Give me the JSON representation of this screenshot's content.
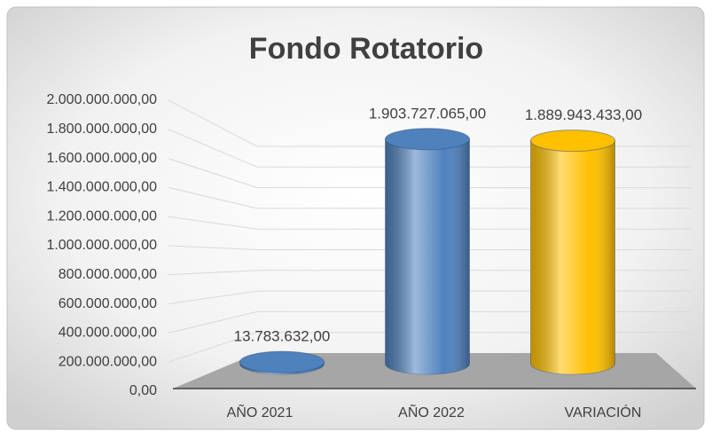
{
  "chart_data": {
    "type": "cylinder",
    "title": "Fondo Rotatorio",
    "categories": [
      "AÑO 2021",
      "AÑO 2022",
      "VARIACIÓN"
    ],
    "values": [
      13783632,
      1903727065,
      1889943433
    ],
    "value_labels": [
      "13.783.632,00",
      "1.903.727.065,00",
      "1.889.943.433,00"
    ],
    "colors": [
      "#4f81bd",
      "#4f81bd",
      "#ffc000"
    ],
    "ylim": [
      0,
      2000000000
    ],
    "yticks": [
      {
        "value": 0,
        "label": "0,00"
      },
      {
        "value": 200000000,
        "label": "200.000.000,00"
      },
      {
        "value": 400000000,
        "label": "400.000.000,00"
      },
      {
        "value": 600000000,
        "label": "600.000.000,00"
      },
      {
        "value": 800000000,
        "label": "800.000.000,00"
      },
      {
        "value": 1000000000,
        "label": "1.000.000.000,00"
      },
      {
        "value": 1200000000,
        "label": "1.200.000.000,00"
      },
      {
        "value": 1400000000,
        "label": "1.400.000.000,00"
      },
      {
        "value": 1600000000,
        "label": "1.600.000.000,00"
      },
      {
        "value": 1800000000,
        "label": "1.800.000.000,00"
      },
      {
        "value": 2000000000,
        "label": "2.000.000.000,00"
      }
    ],
    "grid": true
  }
}
